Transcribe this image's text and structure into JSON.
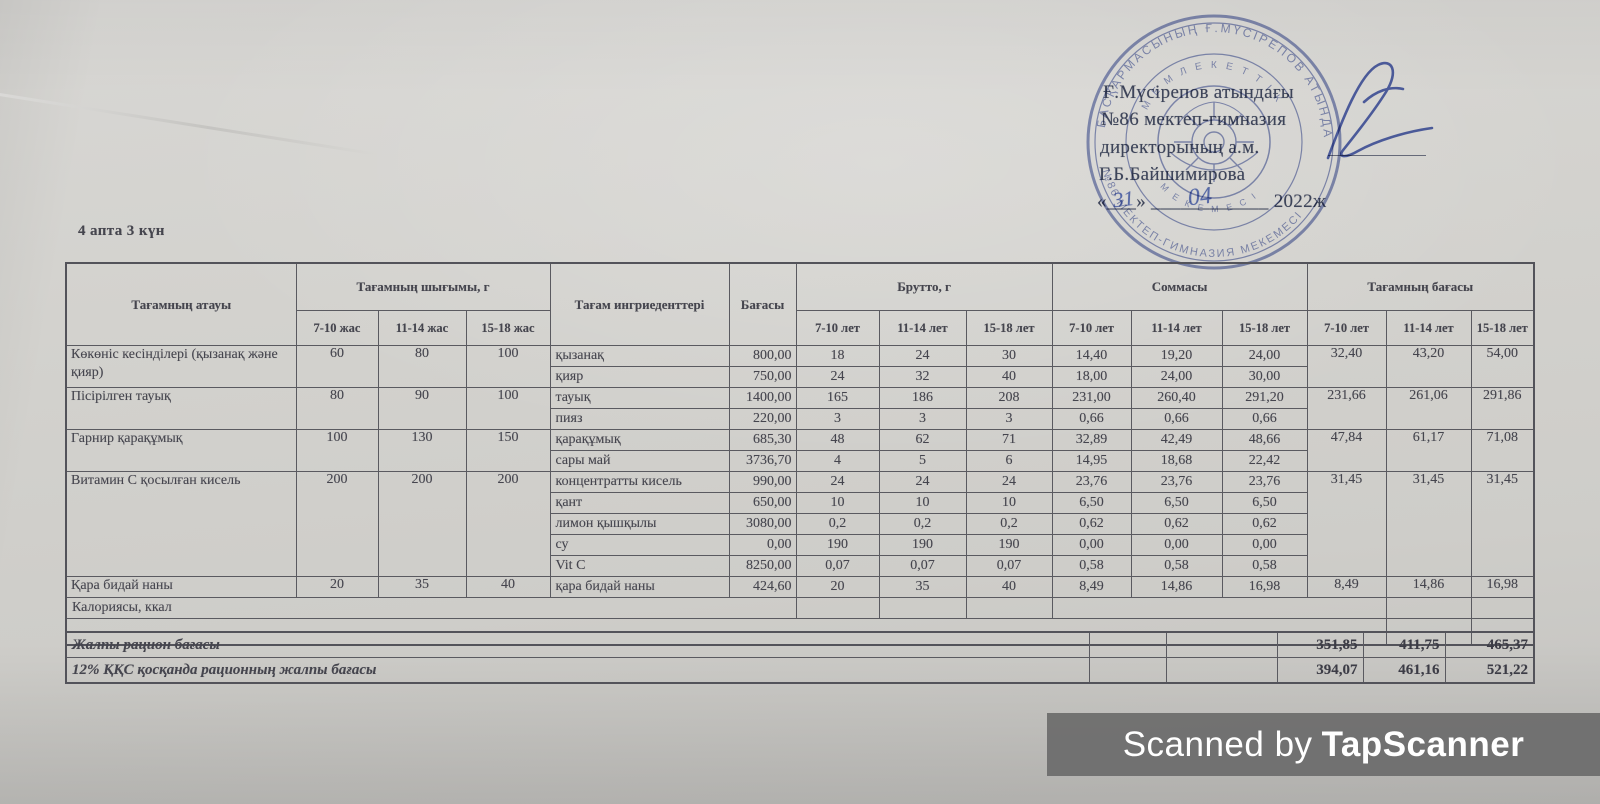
{
  "approval": {
    "line1": "Ғ.Мүсірепов атындағы",
    "line2": "№86 мектеп-гимназия",
    "line3": "директорының а.м.",
    "line4": "Г.Б.Байшимирова",
    "date_line": "«___» ____________ 2022ж",
    "handwritten_day": "31",
    "handwritten_month": "04"
  },
  "caption": "4 апта 3 күн",
  "stamp": {
    "ring_text_outer": "БАСҚАРМАСЫНЫҢ Ғ.МҮСІРЕПОВ АТЫНДАҒЫ",
    "ring_text_bottom": "№86 МЕКТЕП-ГИМНАЗИЯ МЕКЕМЕСІ",
    "ring_text_inner": "М Е М Л Е К Е Т Т І К",
    "ring_text_inner_bottom": "М Е К Е М Е С І"
  },
  "table": {
    "headers": {
      "name": "Тағамның атауы",
      "yield": "Тағамның шығымы, г",
      "ingredients": "Тағам ингриеденттері",
      "price": "Бағасы",
      "brutto": "Брутто, г",
      "sum": "Соммасы",
      "dish_price": "Тағамның бағасы",
      "ages_zhas": [
        "7-10 жас",
        "11-14 жас",
        "15-18 жас"
      ],
      "ages_let": [
        "7-10 лет",
        "11-14 лет",
        "15-18 лет"
      ]
    },
    "dishes": [
      {
        "name": "Көкөніс кесінділері (қызанақ және қияр)",
        "yield": [
          "60",
          "80",
          "100"
        ],
        "dish_price": [
          "32,40",
          "43,20",
          "54,00"
        ],
        "ingredients": [
          {
            "name": "қызанақ",
            "price": "800,00",
            "brutto": [
              "18",
              "24",
              "30"
            ],
            "sum": [
              "14,40",
              "19,20",
              "24,00"
            ]
          },
          {
            "name": "қияр",
            "price": "750,00",
            "brutto": [
              "24",
              "32",
              "40"
            ],
            "sum": [
              "18,00",
              "24,00",
              "30,00"
            ]
          }
        ]
      },
      {
        "name": "Пісірілген тауық",
        "yield": [
          "80",
          "90",
          "100"
        ],
        "dish_price": [
          "231,66",
          "261,06",
          "291,86"
        ],
        "ingredients": [
          {
            "name": "тауық",
            "price": "1400,00",
            "brutto": [
              "165",
              "186",
              "208"
            ],
            "sum": [
              "231,00",
              "260,40",
              "291,20"
            ]
          },
          {
            "name": "пияз",
            "price": "220,00",
            "brutto": [
              "3",
              "3",
              "3"
            ],
            "sum": [
              "0,66",
              "0,66",
              "0,66"
            ]
          }
        ]
      },
      {
        "name": "Гарнир  қарақұмық",
        "yield": [
          "100",
          "130",
          "150"
        ],
        "dish_price": [
          "47,84",
          "61,17",
          "71,08"
        ],
        "ingredients": [
          {
            "name": "қарақұмық",
            "price": "685,30",
            "brutto": [
              "48",
              "62",
              "71"
            ],
            "sum": [
              "32,89",
              "42,49",
              "48,66"
            ]
          },
          {
            "name": "сары май",
            "price": "3736,70",
            "brutto": [
              "4",
              "5",
              "6"
            ],
            "sum": [
              "14,95",
              "18,68",
              "22,42"
            ]
          }
        ]
      },
      {
        "name": "Витамин С қосылған кисель",
        "yield": [
          "200",
          "200",
          "200"
        ],
        "dish_price": [
          "31,45",
          "31,45",
          "31,45"
        ],
        "ingredients": [
          {
            "name": "концентратты кисель",
            "price": "990,00",
            "brutto": [
              "24",
              "24",
              "24"
            ],
            "sum": [
              "23,76",
              "23,76",
              "23,76"
            ]
          },
          {
            "name": "қант",
            "price": "650,00",
            "brutto": [
              "10",
              "10",
              "10"
            ],
            "sum": [
              "6,50",
              "6,50",
              "6,50"
            ]
          },
          {
            "name": "лимон қышқылы",
            "price": "3080,00",
            "brutto": [
              "0,2",
              "0,2",
              "0,2"
            ],
            "sum": [
              "0,62",
              "0,62",
              "0,62"
            ]
          },
          {
            "name": "су",
            "price": "0,00",
            "brutto": [
              "190",
              "190",
              "190"
            ],
            "sum": [
              "0,00",
              "0,00",
              "0,00"
            ]
          },
          {
            "name": "Vit C",
            "price": "8250,00",
            "brutto": [
              "0,07",
              "0,07",
              "0,07"
            ],
            "sum": [
              "0,58",
              "0,58",
              "0,58"
            ]
          }
        ]
      },
      {
        "name": "Қара бидай наны",
        "yield": [
          "20",
          "35",
          "40"
        ],
        "dish_price": [
          "8,49",
          "14,86",
          "16,98"
        ],
        "ingredients": [
          {
            "name": "қара бидай наны",
            "price": "424,60",
            "brutto": [
              "20",
              "35",
              "40"
            ],
            "sum": [
              "8,49",
              "14,86",
              "16,98"
            ]
          }
        ]
      }
    ],
    "calories_label": "Калориясы, ккал",
    "totals": [
      {
        "label": "Жалпы рацион бағасы",
        "values": [
          "351,85",
          "411,75",
          "465,37"
        ]
      },
      {
        "label": "12% ҚҚС қосқанда рационның жалпы бағасы",
        "values": [
          "394,07",
          "461,16",
          "521,22"
        ]
      }
    ]
  },
  "watermark": {
    "prefix": "Scanned by",
    "brand": "TapScanner"
  },
  "colors": {
    "stamp_blue": "#4c5da8",
    "ink": "#45454e",
    "paper": "#d3d2ce",
    "watermark_bg": "#6c6c6c"
  }
}
